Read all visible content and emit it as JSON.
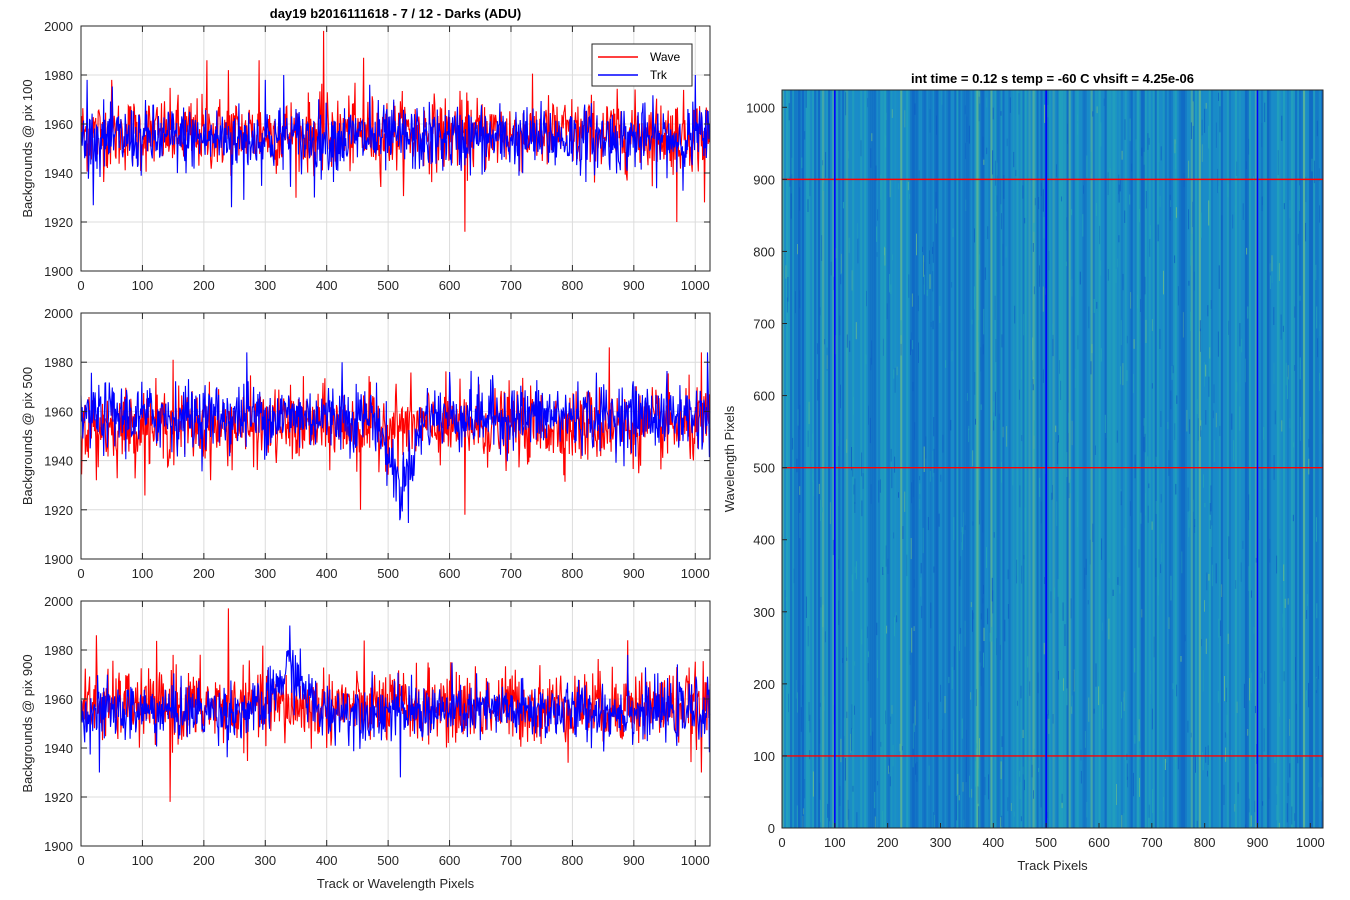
{
  "chart_data": [
    {
      "type": "line",
      "title": "day19 b2016111618 - 7 / 12 - Darks (ADU)",
      "xlabel": "",
      "ylabel": "Backgrounds @ pix 100",
      "xlim": [
        0,
        1024
      ],
      "ylim": [
        1900,
        2000
      ],
      "xticks": [
        0,
        100,
        200,
        300,
        400,
        500,
        600,
        700,
        800,
        900,
        1000
      ],
      "yticks": [
        1900,
        1920,
        1940,
        1960,
        1980,
        2000
      ],
      "grid": true,
      "legend": "top-right",
      "series": [
        {
          "name": "Wave",
          "color": "#ff0000",
          "base": 1956,
          "noise": 10,
          "spikes": [
            [
              50,
              1978
            ],
            [
              205,
              1986
            ],
            [
              240,
              1982
            ],
            [
              290,
              1986
            ],
            [
              395,
              1998
            ],
            [
              460,
              1987
            ],
            [
              625,
              1916
            ],
            [
              1015,
              1928
            ],
            [
              970,
              1920
            ]
          ]
        },
        {
          "name": "Trk",
          "color": "#0000ff",
          "base": 1954,
          "noise": 9,
          "spikes": [
            [
              10,
              1978
            ],
            [
              300,
              1978
            ],
            [
              330,
              1980
            ],
            [
              1000,
              1980
            ],
            [
              245,
              1926
            ],
            [
              265,
              1929
            ],
            [
              380,
              1930
            ],
            [
              470,
              1976
            ]
          ]
        }
      ]
    },
    {
      "type": "line",
      "title": "",
      "xlabel": "",
      "ylabel": "Backgrounds @ pix 500",
      "xlim": [
        0,
        1024
      ],
      "ylim": [
        1900,
        2000
      ],
      "xticks": [
        0,
        100,
        200,
        300,
        400,
        500,
        600,
        700,
        800,
        900,
        1000
      ],
      "yticks": [
        1900,
        1920,
        1940,
        1960,
        1980,
        2000
      ],
      "grid": true,
      "series": [
        {
          "name": "Wave",
          "color": "#ff0000",
          "base": 1954,
          "noise": 10,
          "spikes": [
            [
              150,
              1981
            ],
            [
              455,
              1920
            ],
            [
              625,
              1918
            ],
            [
              860,
              1986
            ],
            [
              1010,
              1984
            ],
            [
              25,
              1932
            ]
          ]
        },
        {
          "name": "Trk",
          "color": "#0000ff",
          "base": 1958,
          "noise": 9,
          "spikes": [
            [
              270,
              1984
            ],
            [
              425,
              1980
            ],
            [
              600,
              1976
            ],
            [
              1020,
              1984
            ]
          ],
          "dips": [
            [
              520,
              1920,
              40
            ]
          ]
        }
      ]
    },
    {
      "type": "line",
      "title": "",
      "xlabel": "Track or Wavelength Pixels",
      "ylabel": "Backgrounds @ pix 900",
      "xlim": [
        0,
        1024
      ],
      "ylim": [
        1900,
        2000
      ],
      "xticks": [
        0,
        100,
        200,
        300,
        400,
        500,
        600,
        700,
        800,
        900,
        1000
      ],
      "yticks": [
        1900,
        1920,
        1940,
        1960,
        1980,
        2000
      ],
      "grid": true,
      "series": [
        {
          "name": "Wave",
          "color": "#ff0000",
          "base": 1957,
          "noise": 10,
          "spikes": [
            [
              25,
              1986
            ],
            [
              145,
              1918
            ],
            [
              240,
              1997
            ],
            [
              150,
              1978
            ],
            [
              1010,
              1930
            ],
            [
              890,
              1984
            ]
          ]
        },
        {
          "name": "Trk",
          "color": "#0000ff",
          "base": 1955,
          "noise": 8,
          "spikes": [
            [
              340,
              1990
            ],
            [
              520,
              1928
            ],
            [
              890,
              1978
            ],
            [
              30,
              1930
            ]
          ],
          "bumps": [
            [
              340,
              1978,
              45
            ]
          ]
        }
      ]
    },
    {
      "type": "heatmap",
      "title": "int time = 0.12 s    temp = -60 C    vhsift = 4.25e-06",
      "xlabel": "Track Pixels",
      "ylabel": "Wavelength Pixels",
      "xlim": [
        0,
        1024
      ],
      "ylim": [
        0,
        1024
      ],
      "xticks": [
        0,
        100,
        200,
        300,
        400,
        500,
        600,
        700,
        800,
        900,
        1000
      ],
      "yticks": [
        0,
        100,
        200,
        300,
        400,
        500,
        600,
        700,
        800,
        900,
        1000
      ],
      "colormap": [
        "#0d5fc4",
        "#1a8cc8",
        "#25a7b8",
        "#6cc08a"
      ],
      "vertical_lines": {
        "color": "#0000ff",
        "x": [
          100,
          500,
          900
        ]
      },
      "horizontal_lines": {
        "color": "#ff0000",
        "y": [
          100,
          500,
          900
        ]
      }
    }
  ]
}
